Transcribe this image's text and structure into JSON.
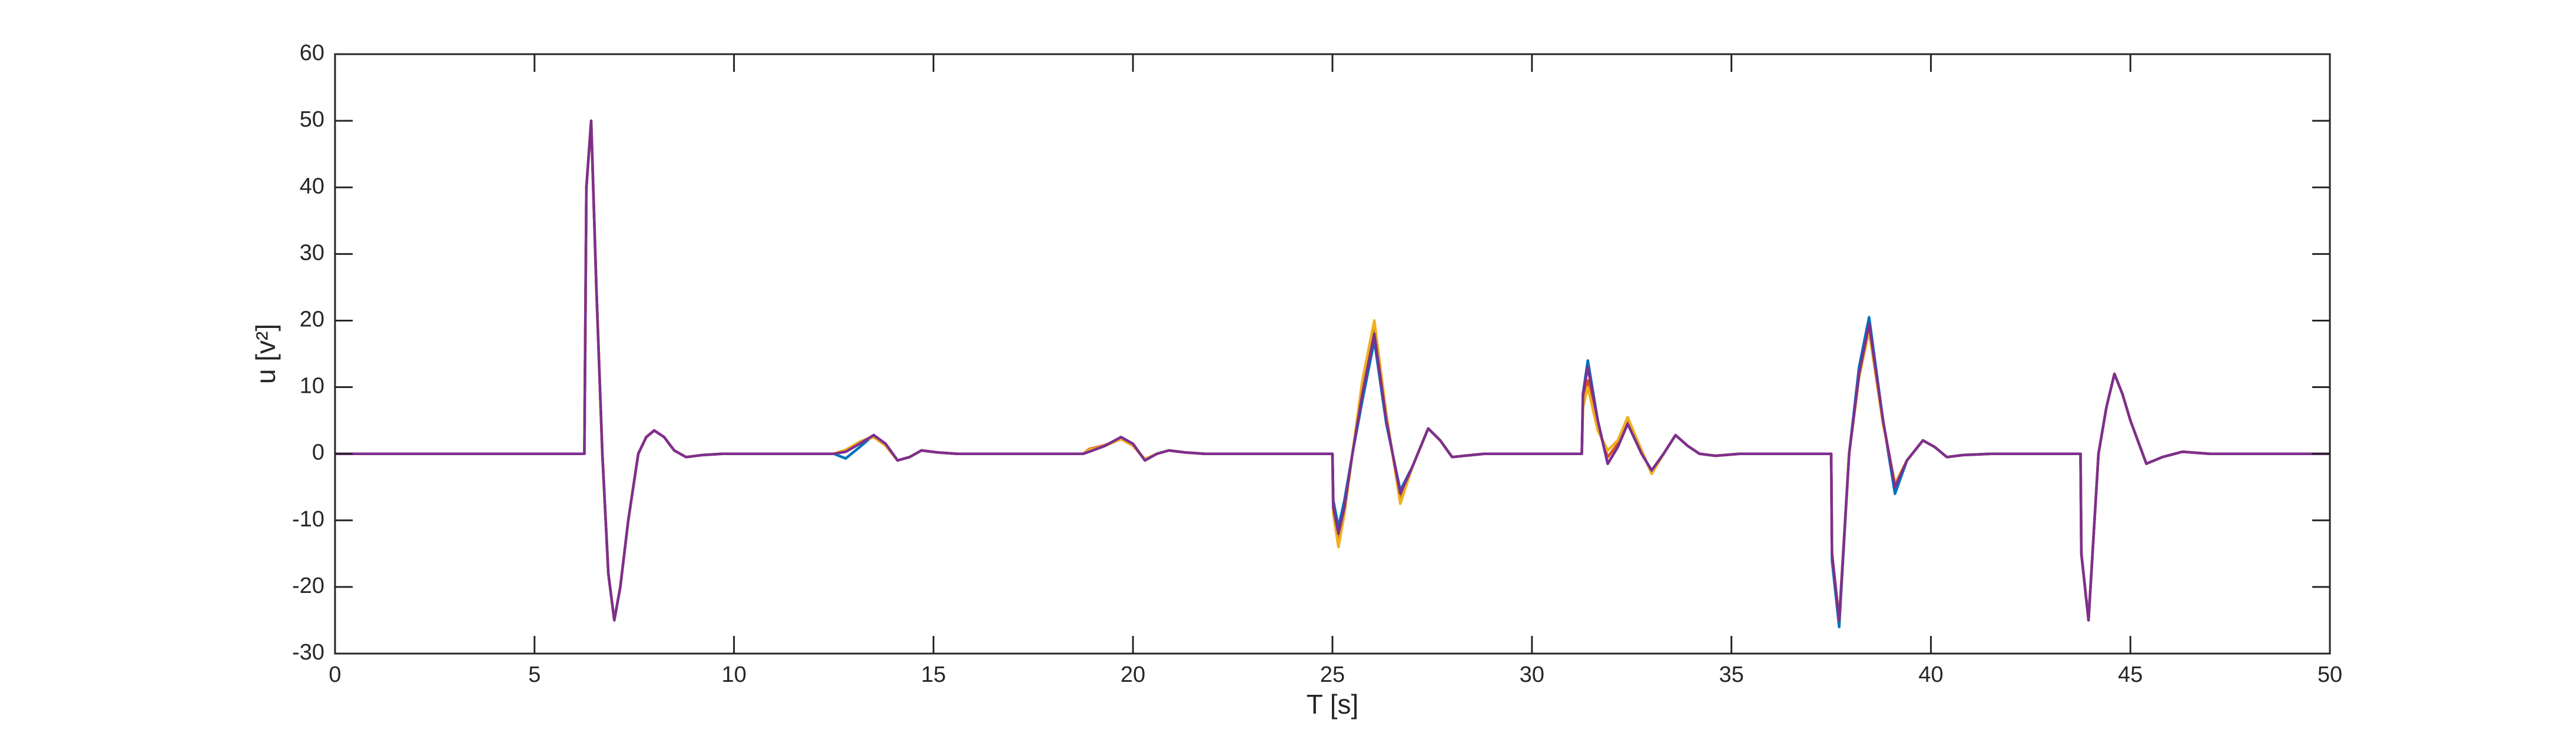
{
  "chart_data": {
    "type": "line",
    "xlabel": "T [s]",
    "ylabel": "u [v²]",
    "xlim": [
      0,
      50
    ],
    "xticks": [
      0,
      5,
      10,
      15,
      20,
      25,
      30,
      35,
      40,
      45,
      50
    ],
    "ylim": [
      -30,
      60
    ],
    "yticks": [
      -30,
      -20,
      -10,
      0,
      10,
      20,
      30,
      40,
      50,
      60
    ],
    "x": [
      0,
      6.25,
      6.3,
      6.42,
      6.55,
      6.7,
      6.85,
      7.0,
      7.15,
      7.35,
      7.6,
      7.8,
      8.0,
      8.25,
      8.5,
      8.8,
      9.2,
      9.7,
      12.5,
      12.8,
      13.15,
      13.5,
      13.8,
      14.1,
      14.4,
      14.7,
      15.1,
      15.6,
      18.75,
      18.9,
      19.3,
      19.7,
      20.0,
      20.3,
      20.6,
      20.9,
      21.3,
      21.8,
      25.0,
      25.02,
      25.15,
      25.3,
      25.5,
      25.75,
      26.05,
      26.35,
      26.7,
      27.0,
      27.4,
      27.7,
      28.0,
      28.3,
      28.8,
      31.25,
      31.28,
      31.4,
      31.65,
      31.9,
      32.15,
      32.4,
      32.75,
      33.0,
      33.3,
      33.6,
      33.9,
      34.2,
      34.6,
      35.2,
      37.5,
      37.52,
      37.7,
      37.95,
      38.2,
      38.45,
      38.8,
      39.1,
      39.4,
      39.8,
      40.1,
      40.4,
      40.8,
      41.5,
      43.75,
      43.77,
      43.95,
      44.2,
      44.4,
      44.6,
      44.8,
      45.0,
      45.4,
      45.8,
      46.3,
      47,
      50
    ],
    "series": [
      {
        "color": "#0072bd",
        "values": [
          0,
          0,
          40,
          50,
          25,
          0,
          -18,
          -25,
          -20,
          -10,
          0,
          2.5,
          3.5,
          2.5,
          0.5,
          -0.5,
          -0.2,
          0,
          0,
          -0.7,
          1,
          2.8,
          1.5,
          -1,
          -0.5,
          0.5,
          0.2,
          0,
          0,
          0.3,
          1.2,
          2.5,
          1.5,
          -1,
          0,
          0.5,
          0.2,
          0,
          0,
          -7,
          -11,
          -7,
          0,
          8,
          17,
          4.5,
          -5.5,
          -2,
          3.8,
          2,
          -0.5,
          -0.3,
          0,
          0,
          9,
          14,
          5,
          -1.5,
          1,
          4.5,
          0,
          -2.5,
          0,
          2.8,
          1.2,
          0,
          -0.3,
          0,
          0,
          -16,
          -26,
          0,
          13,
          20.5,
          5,
          -6,
          -1,
          2,
          1,
          -0.5,
          -0.2,
          0,
          0,
          -15,
          -25,
          0,
          7,
          12,
          9,
          5,
          -1.5,
          -0.5,
          0.3,
          0,
          0
        ]
      },
      {
        "color": "#d95319",
        "values": [
          0,
          0,
          40,
          50,
          25,
          0,
          -18,
          -25,
          -20,
          -10,
          0,
          2.5,
          3.5,
          2.5,
          0.5,
          -0.5,
          -0.2,
          0,
          0,
          0.5,
          1.8,
          2.6,
          1.3,
          -1,
          -0.5,
          0.5,
          0.2,
          0,
          0,
          0.7,
          1.3,
          2.3,
          1.2,
          -0.8,
          0,
          0.5,
          0.2,
          0,
          0,
          -8.5,
          -13,
          -8,
          0,
          10,
          19,
          5.5,
          -7,
          -2,
          3.8,
          2,
          -0.5,
          -0.3,
          0,
          0,
          8,
          11,
          4,
          -0.5,
          1.5,
          5,
          0.5,
          -3,
          0,
          2.8,
          1.2,
          0,
          -0.3,
          0,
          0,
          -15,
          -25,
          0,
          11.5,
          18.5,
          4.5,
          -4.5,
          -1,
          2,
          1,
          -0.5,
          -0.2,
          0,
          0,
          -15,
          -25,
          0,
          7,
          12,
          9,
          5,
          -1.5,
          -0.5,
          0.3,
          0,
          0
        ]
      },
      {
        "color": "#edb120",
        "values": [
          0,
          0,
          40,
          50,
          25,
          0,
          -18,
          -25,
          -20,
          -10,
          0,
          2.5,
          3.5,
          2.5,
          0.5,
          -0.5,
          -0.2,
          0,
          0,
          0.6,
          1.8,
          2.5,
          1.2,
          -1,
          -0.5,
          0.5,
          0.2,
          0,
          0,
          0.6,
          1.2,
          2.2,
          1.2,
          -0.8,
          0,
          0.5,
          0.2,
          0,
          0,
          -9,
          -14,
          -9,
          0,
          11,
          20,
          6,
          -7.5,
          -2,
          3.8,
          2,
          -0.5,
          -0.3,
          0,
          0,
          7,
          10,
          3.5,
          0.5,
          2,
          5.5,
          0.5,
          -3,
          0,
          2.8,
          1.2,
          0,
          -0.3,
          0,
          0,
          -15,
          -25,
          0,
          11.5,
          18.5,
          4.5,
          -4.5,
          -1,
          2,
          1,
          -0.5,
          -0.2,
          0,
          0,
          -15,
          -25,
          0,
          7,
          12,
          9,
          5,
          -1.5,
          -0.5,
          0.3,
          0,
          0
        ]
      },
      {
        "color": "#7e2f8e",
        "values": [
          0,
          0,
          40,
          50,
          25,
          0,
          -18,
          -25,
          -20,
          -10,
          0,
          2.5,
          3.5,
          2.5,
          0.5,
          -0.5,
          -0.2,
          0,
          0,
          0.3,
          1.5,
          2.8,
          1.5,
          -1,
          -0.5,
          0.5,
          0.2,
          0,
          0,
          0.3,
          1.2,
          2.5,
          1.5,
          -1,
          0,
          0.5,
          0.2,
          0,
          0,
          -8,
          -12,
          -8,
          0,
          9,
          18,
          5,
          -6,
          -2,
          3.8,
          2,
          -0.5,
          -0.3,
          0,
          0,
          9,
          13,
          5,
          -1.5,
          1,
          4.5,
          0,
          -2.5,
          0,
          2.8,
          1.2,
          0,
          -0.3,
          0,
          0,
          -15,
          -25,
          0,
          12,
          19.5,
          5,
          -5,
          -1,
          2,
          1,
          -0.5,
          -0.2,
          0,
          0,
          -15,
          -25,
          0,
          7,
          12,
          9,
          5,
          -1.5,
          -0.5,
          0.3,
          0,
          0
        ]
      }
    ]
  }
}
